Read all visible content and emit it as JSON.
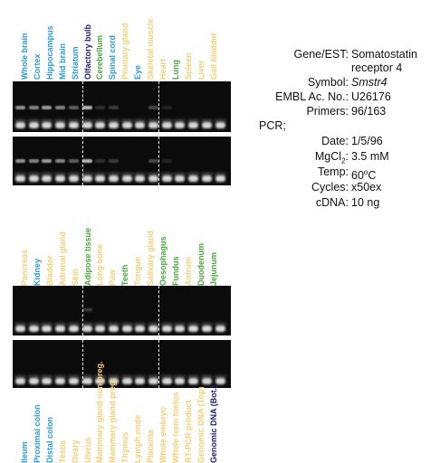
{
  "panel1": {
    "labels": [
      {
        "text": "Whole brain",
        "color": "#2a9ad6"
      },
      {
        "text": "Cortex",
        "color": "#2a9ad6"
      },
      {
        "text": "Hippocampus",
        "color": "#2a9ad6"
      },
      {
        "text": "Mid brain",
        "color": "#2a9ad6"
      },
      {
        "text": "Striatum",
        "color": "#2a9ad6"
      },
      {
        "text": "Olfactory bulb",
        "color": "#1d1b7a"
      },
      {
        "text": "Cerebellum",
        "color": "#46a83b"
      },
      {
        "text": "Spinal cord",
        "color": "#2a9ad6"
      },
      {
        "text": "Pituitary gland",
        "color": "#f4cf74"
      },
      {
        "text": "Eye",
        "color": "#2a9ad6"
      },
      {
        "text": "Skeletal muscle",
        "color": "#f4cf74"
      },
      {
        "text": "Heart",
        "color": "#f4cf74"
      },
      {
        "text": "Lung",
        "color": "#46a83b"
      },
      {
        "text": "Spleen",
        "color": "#f4cf74"
      },
      {
        "text": "Liver",
        "color": "#f4cf74"
      },
      {
        "text": "Gall bladder",
        "color": "#f4cf74"
      }
    ]
  },
  "panel2": {
    "labels": [
      {
        "text": "Pancreas",
        "color": "#f4cf74"
      },
      {
        "text": "Kidney",
        "color": "#2a9ad6"
      },
      {
        "text": "Bladder",
        "color": "#f4cf74"
      },
      {
        "text": "Adrenal gland",
        "color": "#f4cf74"
      },
      {
        "text": "Skin",
        "color": "#f4cf74"
      },
      {
        "text": "Adipose tissue",
        "color": "#46a83b"
      },
      {
        "text": "Long bone",
        "color": "#f4cf74"
      },
      {
        "text": "Paw",
        "color": "#f4cf74"
      },
      {
        "text": "Teeth",
        "color": "#46a83b"
      },
      {
        "text": "Tongue",
        "color": "#f4cf74"
      },
      {
        "text": "Salivary gland",
        "color": "#f4cf74"
      },
      {
        "text": "Oesophagus",
        "color": "#46a83b"
      },
      {
        "text": "Fundus",
        "color": "#46a83b"
      },
      {
        "text": "Antrum",
        "color": "#f4cf74"
      },
      {
        "text": "Duodenum",
        "color": "#46a83b"
      },
      {
        "text": "Jejunum",
        "color": "#46a83b"
      }
    ]
  },
  "panel3": {
    "labels": [
      {
        "text": "Ileum",
        "color": "#2a9ad6"
      },
      {
        "text": "Proximal colon",
        "color": "#2a9ad6"
      },
      {
        "text": "Distal colon",
        "color": "#2a9ad6"
      },
      {
        "text": "Testis",
        "color": "#f4cf74"
      },
      {
        "text": "Ovary",
        "color": "#f4cf74"
      },
      {
        "text": "Uterus",
        "color": "#f4cf74"
      },
      {
        "text": "Mammary gland non-preg.",
        "color": "#f4cf74"
      },
      {
        "text": "Mammary gland preg.",
        "color": "#f4cf74"
      },
      {
        "text": "Thymus",
        "color": "#f4cf74"
      },
      {
        "text": "Lymph node",
        "color": "#f4cf74"
      },
      {
        "text": "Placenta",
        "color": "#f4cf74"
      },
      {
        "text": "Whole embryo",
        "color": "#f4cf74"
      },
      {
        "text": "Whole term foetus",
        "color": "#f4cf74"
      },
      {
        "text": "RT-PCR product",
        "color": "#f4cf74"
      },
      {
        "text": "Genomic DNA (Top)",
        "color": "#f4cf74"
      },
      {
        "text": "Genomic DNA (Bot.)",
        "color": "#1d1b7a"
      }
    ]
  },
  "info": {
    "gene_label": "Gene/EST:",
    "gene_value_line1": "Somatostatin",
    "gene_value_line2": "receptor 4",
    "symbol_label": "Symbol:",
    "symbol_value": "Smstr4",
    "embl_label": "EMBL Ac. No.:",
    "embl_value": "U26176",
    "primers_label": "Primers:",
    "primers_value": "96/163",
    "pcr_label": "PCR;",
    "date_label": "Date:",
    "date_value": "1/5/96",
    "mgcl_label_main": "MgCl",
    "mgcl_label_sub": "2",
    "mgcl_label_colon": ":",
    "mgcl_value": "3.5 mM",
    "temp_label": "Temp:",
    "temp_value_num": "60",
    "temp_value_deg": "o",
    "temp_value_unit": "C",
    "cycles_label": "Cycles:",
    "cycles_value": "x50ex",
    "cdna_label": "cDNA:",
    "cdna_value": "10 ng"
  }
}
